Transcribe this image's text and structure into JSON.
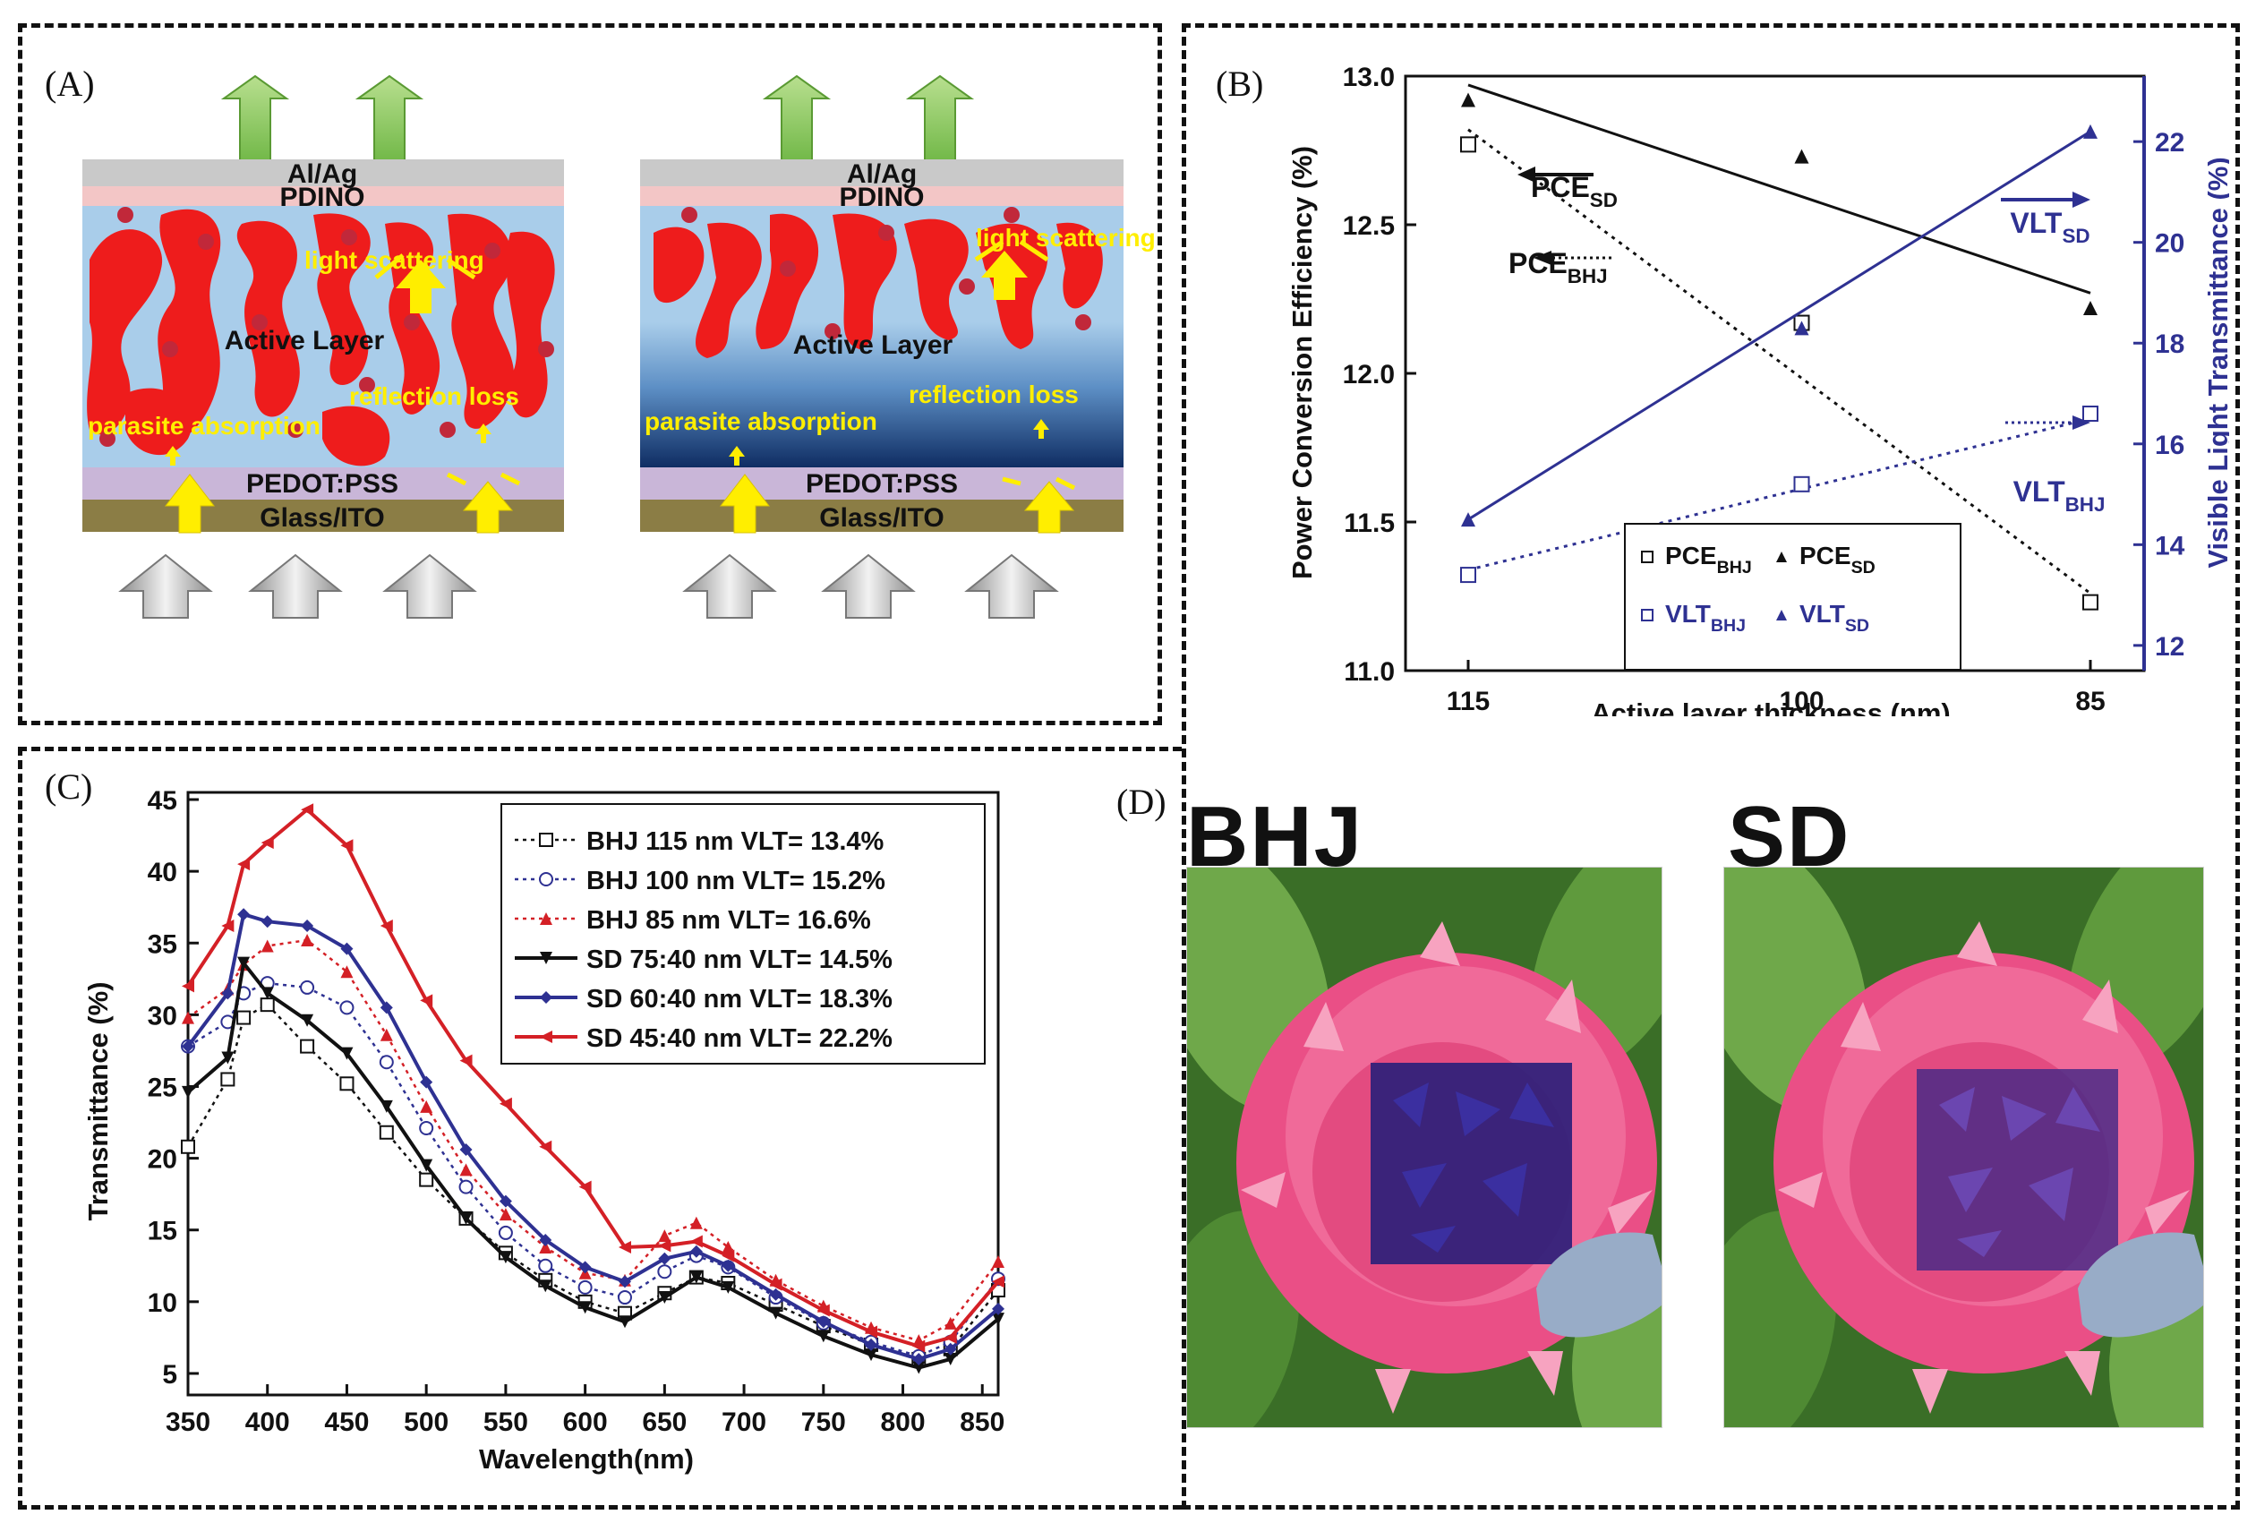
{
  "panel_a": {
    "label": "(A)",
    "left": {
      "layers": [
        "Al/Ag",
        "PDINO",
        "Active Layer",
        "PEDOT:PSS",
        "Glass/ITO"
      ],
      "annotations": [
        "light scattering",
        "reflection loss",
        "parasite absorption"
      ]
    },
    "right": {
      "layers": [
        "Al/Ag",
        "PDINO",
        "Active Layer",
        "PEDOT:PSS",
        "Glass/ITO"
      ],
      "annotations": [
        "light scattering",
        "reflection loss",
        "parasite absorption"
      ]
    },
    "colors": {
      "metal": "#c9c9c9",
      "pdino": "#f3c6c6",
      "active_bg": "#a9cdea",
      "pedot": "#c9b6d8",
      "glass": "#8b7d45",
      "donor": "#ee1c1c",
      "dot": "#c1283a",
      "label_yellow": "#ffee00",
      "arrow_green": "#7fc24d",
      "arrow_grey": "#b9b9b9",
      "arrow_yellow": "#ffee00"
    }
  },
  "panel_b": {
    "label": "(B)",
    "chart_data": {
      "type": "line",
      "title": "",
      "xlabel": "Active layer thickness (nm)",
      "ylabel": "Power Conversion Efficiency (%)",
      "y2label": "Visible Light Transmittance (%)",
      "categories": [
        "115",
        "100",
        "85"
      ],
      "ylim": [
        11.0,
        13.0
      ],
      "y2lim": [
        11.5,
        23.3
      ],
      "yticks": [
        "11.0",
        "11.5",
        "12.0",
        "12.5",
        "13.0"
      ],
      "y2ticks": [
        "12",
        "14",
        "16",
        "18",
        "20",
        "22"
      ],
      "series": [
        {
          "name": "PCE_BHJ",
          "axis": "left",
          "marker": "square",
          "color": "#111111",
          "values": [
            12.77,
            12.17,
            11.23
          ],
          "fit": [
            12.82,
            11.26
          ],
          "style": "dotted"
        },
        {
          "name": "PCE_SD",
          "axis": "left",
          "marker": "triangle",
          "color": "#111111",
          "values": [
            12.92,
            12.73,
            12.22
          ],
          "fit": [
            12.97,
            12.27
          ],
          "style": "solid"
        },
        {
          "name": "VLT_BHJ",
          "axis": "right",
          "marker": "square",
          "color": "#2e3192",
          "values": [
            13.4,
            15.2,
            16.6
          ],
          "fit": [
            13.5,
            16.5
          ],
          "style": "dotted"
        },
        {
          "name": "VLT_SD",
          "axis": "right",
          "marker": "triangle",
          "color": "#2e3192",
          "values": [
            14.5,
            18.3,
            22.2
          ],
          "fit": [
            14.5,
            22.2
          ],
          "style": "solid"
        }
      ],
      "annotations": [
        {
          "base": "PCE",
          "sub": "SD"
        },
        {
          "base": "PCE",
          "sub": "BHJ"
        },
        {
          "base": "VLT",
          "sub": "SD"
        },
        {
          "base": "VLT",
          "sub": "BHJ"
        }
      ],
      "legend": {
        "position": "bottom-center",
        "entries": [
          {
            "base": "PCE",
            "sub": "BHJ"
          },
          {
            "base": "PCE",
            "sub": "SD"
          },
          {
            "base": "VLT",
            "sub": "BHJ"
          },
          {
            "base": "VLT",
            "sub": "SD"
          }
        ]
      }
    }
  },
  "panel_c": {
    "label": "(C)",
    "chart_data": {
      "type": "line",
      "xlabel": "Wavelength(nm)",
      "ylabel": "Transmittance (%)",
      "xlim": [
        350,
        860
      ],
      "ylim": [
        3.5,
        45.5
      ],
      "xticks": [
        "350",
        "400",
        "450",
        "500",
        "550",
        "600",
        "650",
        "700",
        "750",
        "800",
        "850"
      ],
      "yticks": [
        "5",
        "10",
        "15",
        "20",
        "25",
        "30",
        "35",
        "40",
        "45"
      ],
      "wavelengths": [
        350,
        375,
        385,
        400,
        425,
        450,
        475,
        500,
        525,
        550,
        575,
        600,
        625,
        650,
        670,
        690,
        720,
        750,
        780,
        810,
        830,
        860
      ],
      "series": [
        {
          "name": "BHJ 115 nm  VLT= 13.4%",
          "color": "#111111",
          "marker": "square",
          "style": "dotted",
          "values": [
            20.8,
            25.5,
            29.8,
            30.7,
            27.8,
            25.2,
            21.8,
            18.5,
            15.8,
            13.4,
            11.5,
            10.0,
            9.2,
            10.6,
            11.7,
            11.3,
            9.8,
            8.3,
            7.0,
            6.0,
            6.7,
            10.8
          ]
        },
        {
          "name": "BHJ 100 nm  VLT= 15.2%",
          "color": "#2e3192",
          "marker": "circle",
          "style": "dotted",
          "values": [
            27.8,
            29.5,
            31.5,
            32.2,
            31.9,
            30.5,
            26.7,
            22.1,
            18.0,
            14.8,
            12.5,
            11.0,
            10.3,
            12.1,
            13.2,
            12.4,
            10.3,
            8.5,
            7.2,
            6.2,
            7.2,
            11.6
          ]
        },
        {
          "name": "BHJ 85 nm   VLT= 16.6%",
          "color": "#d42026",
          "marker": "triangle",
          "style": "dotted",
          "values": [
            29.8,
            31.8,
            33.5,
            34.8,
            35.2,
            33.0,
            28.6,
            23.6,
            19.2,
            16.1,
            13.8,
            12.0,
            11.5,
            14.6,
            15.5,
            13.8,
            11.5,
            9.7,
            8.2,
            7.3,
            8.5,
            12.8
          ]
        },
        {
          "name": "SD 75:40 nm VLT= 14.5%",
          "color": "#111111",
          "marker": "triangle-down",
          "style": "solid",
          "values": [
            24.6,
            27.0,
            33.6,
            31.5,
            29.6,
            27.3,
            23.6,
            19.5,
            15.8,
            13.1,
            11.1,
            9.6,
            8.6,
            10.3,
            11.7,
            11.0,
            9.2,
            7.6,
            6.3,
            5.4,
            6.0,
            8.8
          ]
        },
        {
          "name": "SD 60:40 nm VLT= 18.3%",
          "color": "#2e3192",
          "marker": "diamond",
          "style": "solid",
          "values": [
            27.8,
            31.5,
            37.0,
            36.5,
            36.2,
            34.6,
            30.5,
            25.3,
            20.6,
            17.0,
            14.3,
            12.4,
            11.4,
            13.0,
            13.5,
            12.5,
            10.5,
            8.6,
            7.0,
            6.0,
            6.7,
            9.5
          ]
        },
        {
          "name": "SD 45:40 nm VLT= 22.2%",
          "color": "#d42026",
          "marker": "triangle-left",
          "style": "solid",
          "values": [
            32.0,
            36.2,
            40.5,
            42.0,
            44.3,
            41.8,
            36.2,
            31.0,
            26.8,
            23.8,
            20.8,
            18.0,
            13.8,
            13.9,
            14.2,
            13.2,
            11.2,
            9.4,
            7.9,
            6.9,
            7.5,
            11.4
          ]
        }
      ],
      "legend": {
        "position": "top-right"
      }
    }
  },
  "panel_d": {
    "label": "(D)",
    "titles": [
      "BHJ",
      "SD"
    ],
    "colors": {
      "leaf": "#3f7d2c",
      "leaf_light": "#6fa84a",
      "flower": "#ea4f86",
      "flower_light": "#f7a3c0",
      "center": "#c9235a",
      "bhj_film": "#2c1f7a",
      "sd_film": "#4a2a86",
      "finger": "#98acc7"
    }
  }
}
